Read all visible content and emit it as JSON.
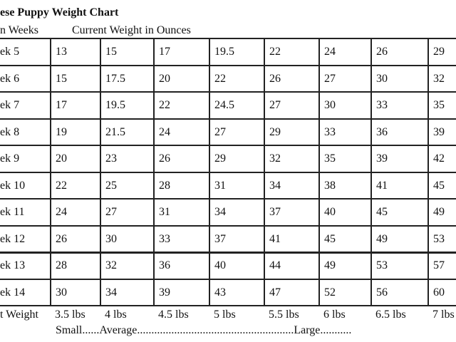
{
  "header": {
    "title": "ese Puppy Weight Chart",
    "left_label": "n Weeks",
    "right_label": "Current Weight in Ounces"
  },
  "table": {
    "rows": [
      {
        "label": "ek 5",
        "values": [
          13,
          15,
          17,
          19.5,
          22,
          24,
          26,
          29
        ]
      },
      {
        "label": "ek 6",
        "values": [
          15,
          17.5,
          20,
          22,
          26,
          27,
          30,
          32
        ]
      },
      {
        "label": "ek 7",
        "values": [
          17,
          19.5,
          22,
          24.5,
          27,
          30,
          33,
          35
        ]
      },
      {
        "label": "ek 8",
        "values": [
          19,
          21.5,
          24,
          27,
          29,
          33,
          36,
          39
        ]
      },
      {
        "label": "ek 9",
        "values": [
          20,
          23,
          26,
          29,
          32,
          35,
          39,
          42
        ]
      },
      {
        "label": "ek 10",
        "values": [
          22,
          25,
          28,
          31,
          34,
          38,
          41,
          45
        ]
      },
      {
        "label": "ek 11",
        "values": [
          24,
          27,
          31,
          34,
          37,
          40,
          45,
          49
        ]
      },
      {
        "label": "ek 12",
        "values": [
          26,
          30,
          33,
          37,
          41,
          45,
          49,
          53
        ]
      },
      {
        "label": "ek 13",
        "values": [
          28,
          32,
          36,
          40,
          44,
          49,
          53,
          57
        ]
      },
      {
        "label": "ek 14",
        "values": [
          30,
          34,
          39,
          43,
          47,
          52,
          56,
          60
        ]
      }
    ]
  },
  "footer": {
    "label": "t Weight",
    "sizes": [
      "3.5 lbs",
      "4 lbs",
      "4.5 lbs",
      "5 lbs",
      "5.5 lbs",
      "6 lbs",
      "6.5 lbs",
      "7 lbs"
    ],
    "scale": "Small......Average.......................................................Large..........."
  }
}
